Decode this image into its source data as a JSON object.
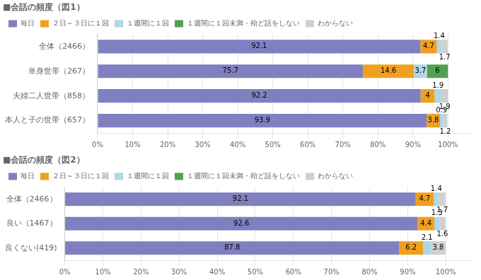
{
  "chart_data": [
    {
      "type": "bar",
      "orientation": "horizontal",
      "stacked": true,
      "title": "■会話の頻度（図1）",
      "categories": [
        "全体（2466）",
        "単身世帯（267）",
        "夫婦二人世帯（858）",
        "本人と子の世帯（657）"
      ],
      "series": [
        {
          "name": "毎日",
          "color": "#8080c0",
          "values": [
            92.1,
            75.7,
            92.2,
            93.9
          ]
        },
        {
          "name": "２日～３日に１回",
          "color": "#f0a020",
          "values": [
            4.7,
            14.6,
            4.0,
            3.8
          ]
        },
        {
          "name": "１週間に１回",
          "color": "#add8e6",
          "values": [
            1.4,
            3.7,
            1.9,
            0.9
          ]
        },
        {
          "name": "１週間に１回未満・殆ど話をしない",
          "color": "#50a050",
          "values": [
            0,
            6.0,
            0,
            0
          ]
        },
        {
          "name": "わからない",
          "color": "#d0d0d0",
          "values": [
            1.7,
            0,
            1.9,
            1.2
          ]
        }
      ],
      "xlim": [
        0,
        107
      ],
      "xticks": [
        {
          "value": 0,
          "label": "0%"
        },
        {
          "value": 10,
          "label": "10%"
        },
        {
          "value": 20,
          "label": "20%"
        },
        {
          "value": 30,
          "label": "30%"
        },
        {
          "value": 40,
          "label": "40%"
        },
        {
          "value": 50,
          "label": "50%"
        },
        {
          "value": 60,
          "label": "60%"
        },
        {
          "value": 70,
          "label": "70%"
        },
        {
          "value": 80,
          "label": "80%"
        },
        {
          "value": 90,
          "label": "90%"
        },
        {
          "value": 100,
          "label": "100%"
        }
      ],
      "grid": true,
      "legend": "upper left",
      "data_labels": true
    },
    {
      "type": "bar",
      "orientation": "horizontal",
      "stacked": true,
      "title": "■会話の頻度（図2）",
      "categories": [
        "全体（2466）",
        "良い（1467）",
        "良くない(419)"
      ],
      "series": [
        {
          "name": "毎日",
          "color": "#8080c0",
          "values": [
            92.1,
            92.6,
            87.8
          ]
        },
        {
          "name": "２日～３日に１回",
          "color": "#f0a020",
          "values": [
            4.7,
            4.4,
            6.2
          ]
        },
        {
          "name": "１週間に１回",
          "color": "#add8e6",
          "values": [
            1.4,
            1.3,
            2.1
          ]
        },
        {
          "name": "１週間に１回未満・殆ど話をしない",
          "color": "#50a050",
          "values": [
            0,
            0,
            0
          ]
        },
        {
          "name": "わからない",
          "color": "#d0d0d0",
          "values": [
            1.7,
            1.6,
            3.8
          ]
        }
      ],
      "xlim": [
        0,
        107
      ],
      "xticks": [
        {
          "value": 0,
          "label": "0%"
        },
        {
          "value": 10,
          "label": "10%"
        },
        {
          "value": 20,
          "label": "20%"
        },
        {
          "value": 30,
          "label": "30%"
        },
        {
          "value": 40,
          "label": "40%"
        },
        {
          "value": 50,
          "label": "50%"
        },
        {
          "value": 60,
          "label": "60%"
        },
        {
          "value": 70,
          "label": "70%"
        },
        {
          "value": 80,
          "label": "80%"
        },
        {
          "value": 90,
          "label": "90%"
        },
        {
          "value": 100,
          "label": "100%"
        }
      ],
      "grid": true,
      "legend": "upper left",
      "data_labels": true
    }
  ]
}
